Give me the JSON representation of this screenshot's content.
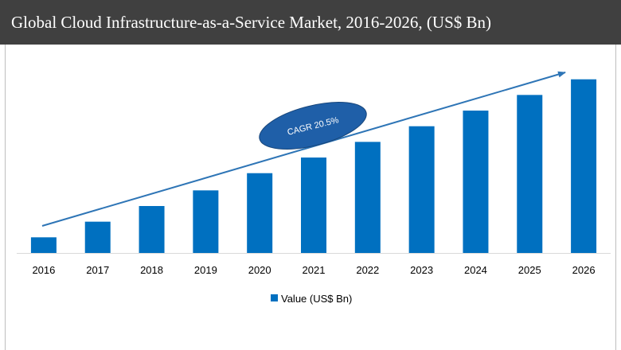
{
  "chart_data": {
    "type": "bar",
    "title": "Global Cloud Infrastructure-as-a-Service Market, 2016-2026, (US$ Bn)",
    "categories": [
      "2016",
      "2017",
      "2018",
      "2019",
      "2020",
      "2021",
      "2022",
      "2023",
      "2024",
      "2025",
      "2026"
    ],
    "series": [
      {
        "name": "Value (US$ Bn)",
        "values": [
          1.0,
          2.0,
          3.0,
          4.0,
          5.1,
          6.1,
          7.1,
          8.1,
          9.1,
          10.1,
          11.1
        ]
      }
    ],
    "ylim": [
      0,
      12
    ],
    "xlabel": "",
    "ylabel": "",
    "grid": false,
    "legend_position": "bottom",
    "annotation": "CAGR 20.5%",
    "colors": {
      "bar": "#0070c0",
      "arrow": "#2e75b6",
      "ellipse": "#1f5fa8"
    }
  }
}
